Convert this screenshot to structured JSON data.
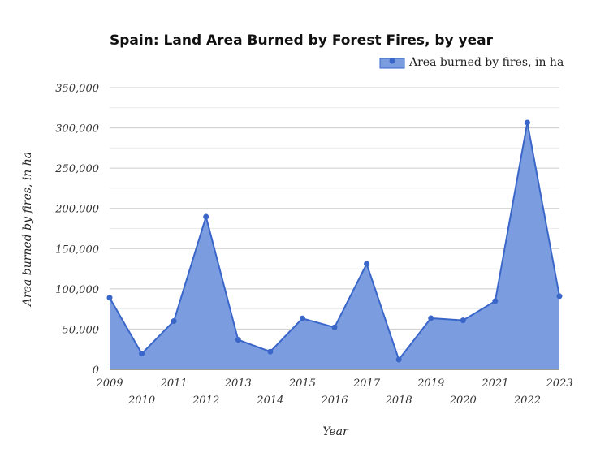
{
  "chart_data": {
    "type": "area",
    "title": "Spain: Land Area Burned by Forest Fires, by year",
    "xlabel": "Year",
    "ylabel": "Area burned by fires, in ha",
    "legend": {
      "position": "top-right",
      "entries": [
        "Area burned by fires, in ha"
      ]
    },
    "ylim": [
      0,
      350000
    ],
    "yticks": [
      "0",
      "50,000",
      "100,000",
      "150,000",
      "200,000",
      "250,000",
      "300,000",
      "350,000"
    ],
    "grid": true,
    "colors": {
      "line": "#3a66c9",
      "fill": "#7b9de0"
    },
    "series": [
      {
        "name": "Area burned by fires, in ha",
        "x": [
          "2009",
          "2010",
          "2011",
          "2012",
          "2013",
          "2014",
          "2015",
          "2016",
          "2017",
          "2018",
          "2019",
          "2020",
          "2021",
          "2022",
          "2023"
        ],
        "values": [
          89000,
          19500,
          60000,
          189600,
          36700,
          22000,
          63300,
          52200,
          131000,
          12100,
          63600,
          60900,
          84800,
          306600,
          90900
        ]
      }
    ]
  }
}
